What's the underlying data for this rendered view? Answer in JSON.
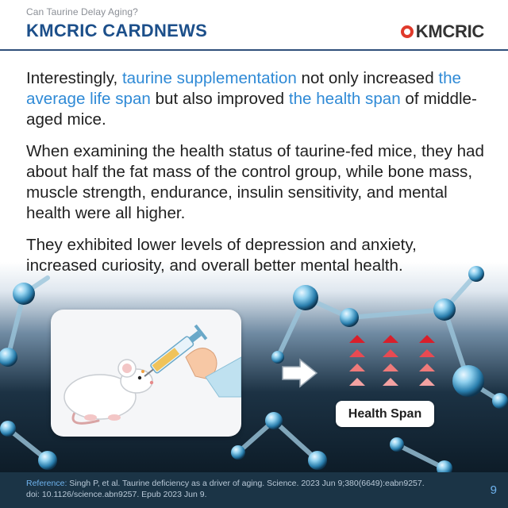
{
  "header": {
    "kicker": "Can Taurine Delay Aging?",
    "series_title": "KMCRIC CARDNEWS",
    "logo_text": "KMCRIC"
  },
  "paragraphs": {
    "p1": {
      "t1": "Interestingly, ",
      "h1": "taurine supplementation",
      "t2": " not only increased ",
      "h2": "the average life span",
      "t3": " but also improved ",
      "h3": "the health span",
      "t4": " of middle-aged mice."
    },
    "p2": "When examining the health status of taurine-fed mice, they had about half the fat mass of the control group, while bone mass, muscle strength, endurance, insulin sensitivity, and mental health were all higher.",
    "p3": "They exhibited lower levels of depression and anxiety, increased curiosity, and overall better mental health."
  },
  "illustration": {
    "badge_label": "Health Span"
  },
  "footer": {
    "reference_label": "Reference:",
    "reference_line1": " Singh P, et al. Taurine deficiency as a driver of aging. Science. 2023 Jun 9;380(6649):eabn9257.",
    "reference_line2": "doi: 10.1126/science.abn9257. Epub 2023 Jun 9.",
    "page_number": "9"
  },
  "colors": {
    "title_blue": "#1c4f8a",
    "highlight_blue": "#2f8ad6",
    "logo_red": "#e03a2b",
    "footer_bg": "#1b3446"
  },
  "icons": [
    "logo-circle-icon",
    "arrow-right-icon",
    "up-triangle-icon",
    "mouse-illustration",
    "syringe-illustration"
  ]
}
